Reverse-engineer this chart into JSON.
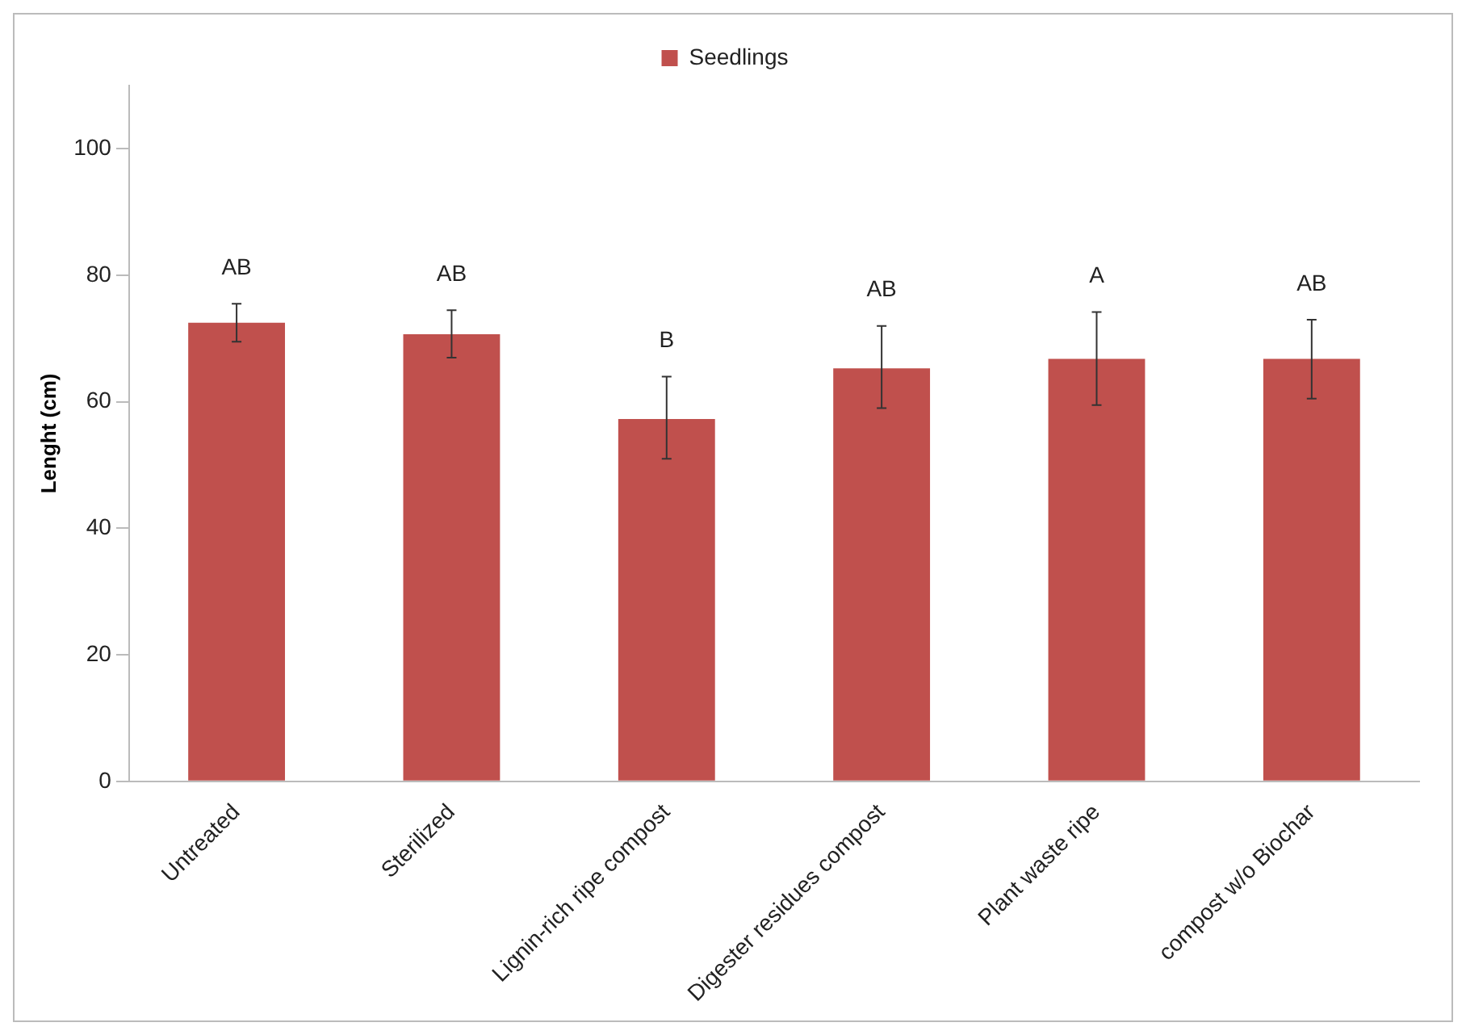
{
  "chart_data": {
    "type": "bar",
    "ylabel": "Lenght (cm)",
    "categories": [
      "Untreated",
      "Sterilized",
      "Lignin-rich ripe compost",
      "Digester residues compost",
      "Plant waste ripe",
      "compost w/o Biochar"
    ],
    "series": [
      {
        "name": "Seedlings",
        "color": "#c0504d",
        "values": [
          72.5,
          70.7,
          57.3,
          65.3,
          66.8,
          66.8
        ],
        "errors": [
          [
            69.5,
            75.5
          ],
          [
            67,
            74.5
          ],
          [
            51,
            64
          ],
          [
            59,
            72
          ],
          [
            59.5,
            74.2
          ],
          [
            60.5,
            73
          ]
        ]
      }
    ],
    "ylim": [
      0,
      110
    ],
    "yticks": [
      0,
      20,
      40,
      60,
      80,
      100
    ],
    "grid": false,
    "legend": "top",
    "annotations": [
      "AB",
      "AB",
      "B",
      "AB",
      "A",
      "AB"
    ]
  }
}
